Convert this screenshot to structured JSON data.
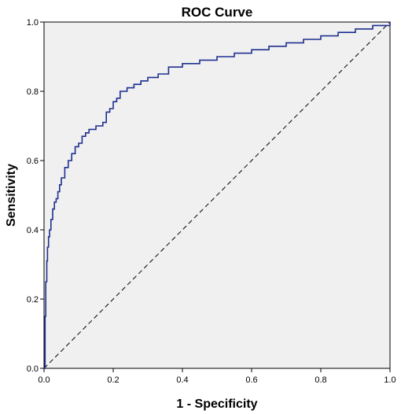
{
  "chart_data": {
    "type": "line",
    "title": "ROC Curve",
    "xlabel": "1 - Specificity",
    "ylabel": "Sensitivity",
    "xlim": [
      0,
      1
    ],
    "ylim": [
      0,
      1
    ],
    "grid": false,
    "xticks": [
      "0.0",
      "0.2",
      "0.4",
      "0.6",
      "0.8",
      "1.0"
    ],
    "yticks": [
      "0.0",
      "0.2",
      "0.4",
      "0.6",
      "0.8",
      "1.0"
    ],
    "colors": {
      "curve": "#1f2f8f",
      "reference": "#000000",
      "plot_bg": "#f0f0f0"
    },
    "series": [
      {
        "style": "step",
        "x": [
          0.0,
          0.003,
          0.005,
          0.008,
          0.01,
          0.013,
          0.016,
          0.02,
          0.025,
          0.03,
          0.035,
          0.04,
          0.045,
          0.05,
          0.06,
          0.07,
          0.08,
          0.09,
          0.1,
          0.11,
          0.12,
          0.13,
          0.15,
          0.17,
          0.18,
          0.19,
          0.2,
          0.21,
          0.22,
          0.24,
          0.26,
          0.28,
          0.3,
          0.33,
          0.36,
          0.4,
          0.45,
          0.5,
          0.55,
          0.6,
          0.65,
          0.7,
          0.75,
          0.8,
          0.85,
          0.9,
          0.95,
          1.0
        ],
        "y": [
          0.0,
          0.15,
          0.25,
          0.31,
          0.35,
          0.38,
          0.4,
          0.43,
          0.46,
          0.48,
          0.49,
          0.51,
          0.53,
          0.55,
          0.58,
          0.6,
          0.62,
          0.64,
          0.65,
          0.67,
          0.68,
          0.69,
          0.7,
          0.71,
          0.74,
          0.75,
          0.77,
          0.78,
          0.8,
          0.81,
          0.82,
          0.83,
          0.84,
          0.85,
          0.87,
          0.88,
          0.89,
          0.9,
          0.91,
          0.92,
          0.93,
          0.94,
          0.95,
          0.96,
          0.97,
          0.98,
          0.99,
          1.0
        ]
      },
      {
        "style": "dashed",
        "x": [
          0,
          1
        ],
        "y": [
          0,
          1
        ]
      }
    ]
  }
}
